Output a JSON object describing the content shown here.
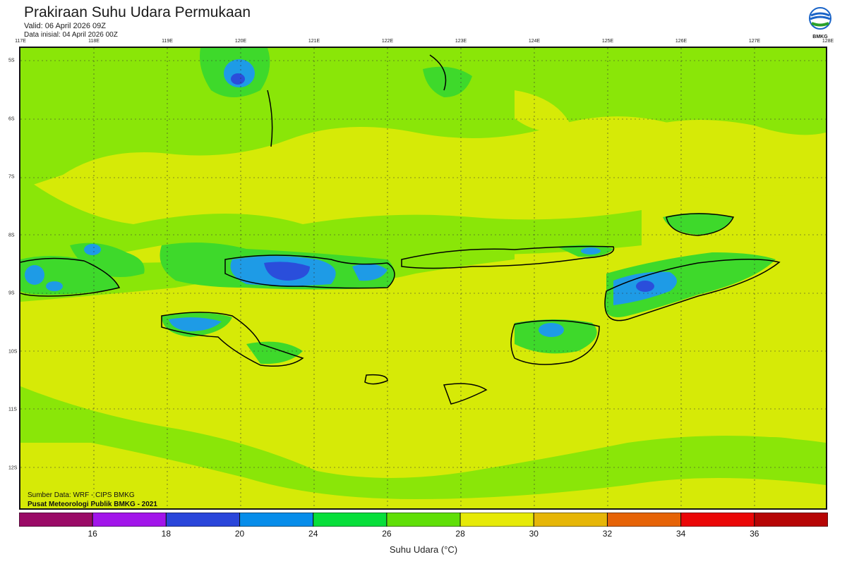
{
  "header": {
    "title": "Prakiraan Suhu Udara Permukaan",
    "valid": "Valid: 06 April 2026 09Z",
    "init": "Data inisial: 04 April 2026 00Z"
  },
  "logo": {
    "text": "BMKG",
    "icon": "bmkg-logo-icon"
  },
  "axes": {
    "lon_labels": [
      "117E",
      "118E",
      "119E",
      "120E",
      "121E",
      "122E",
      "123E",
      "124E",
      "125E",
      "126E",
      "127E",
      "128E"
    ],
    "lat_labels": [
      "5S",
      "6S",
      "7S",
      "8S",
      "9S",
      "10S",
      "11S",
      "12S"
    ]
  },
  "credits": {
    "source": "Sumber Data: WRF - CIPS BMKG",
    "publisher": "Pusat Meteorologi Publik BMKG - 2021"
  },
  "colorbar": {
    "title": "Suhu Udara (°C)",
    "ticks": [
      "16",
      "18",
      "20",
      "24",
      "26",
      "28",
      "30",
      "32",
      "34",
      "36"
    ],
    "colors": [
      "#9a0a66",
      "#a215ea",
      "#2a46da",
      "#078dea",
      "#07df3a",
      "#60df07",
      "#e6ea07",
      "#e6b607",
      "#e66307",
      "#ea0707",
      "#b60505"
    ]
  },
  "map_colors": {
    "yellow": "#d6ea07",
    "lightgreen": "#8ae608",
    "green": "#3ed92b",
    "lightblue": "#1e9be6",
    "blue": "#2a4edb"
  }
}
